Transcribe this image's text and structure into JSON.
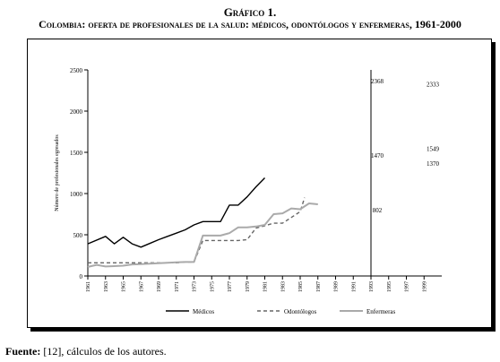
{
  "figure": {
    "number": "Gráfico 1.",
    "title": "Colombia: oferta de profesionales de la salud: médicos, odontólogos y enfermeras, 1961-2000"
  },
  "source": {
    "label": "Fuente:",
    "text": " [12], cálculos de los autores."
  },
  "chart_data": {
    "type": "line",
    "ylabel": "Número de profesionales egresados",
    "ylim": [
      0,
      2500
    ],
    "yticks": [
      0,
      500,
      1000,
      1500,
      2000,
      2500
    ],
    "xlim": [
      1961,
      2001
    ],
    "xticks": [
      "1961",
      "1963",
      "1965",
      "1967",
      "1969",
      "1971",
      "1973",
      "1975",
      "1977",
      "1979",
      "1981",
      "1983",
      "1985",
      "1987",
      "1989",
      "1991",
      "1993",
      "1995",
      "1997",
      "1999"
    ],
    "break_year": 1993,
    "legend_position": "bottom",
    "series": [
      {
        "name": "Médicos",
        "style": "solid",
        "color": "#000000",
        "x": [
          1961,
          1963,
          1964,
          1965,
          1966,
          1967,
          1968,
          1969,
          1970,
          1971,
          1972,
          1973,
          1974,
          1975,
          1976,
          1977,
          1978,
          1979,
          1980,
          1981
        ],
        "y": [
          390,
          480,
          390,
          470,
          390,
          350,
          395,
          440,
          480,
          520,
          560,
          620,
          660,
          660,
          660,
          860,
          860,
          960,
          1080,
          1190
        ]
      },
      {
        "name": "Odontólogos",
        "style": "dashed",
        "color": "#666666",
        "x": [
          1961,
          1963,
          1965,
          1967,
          1969,
          1971,
          1972,
          1973,
          1974,
          1975,
          1976,
          1977,
          1978,
          1979,
          1980,
          1981,
          1982,
          1983,
          1984,
          1985,
          1985.5
        ],
        "y": [
          160,
          160,
          160,
          160,
          160,
          160,
          170,
          170,
          430,
          430,
          430,
          430,
          430,
          440,
          580,
          610,
          640,
          640,
          710,
          780,
          950
        ]
      },
      {
        "name": "Enfermeras",
        "style": "solid",
        "color": "#aaaaaa",
        "x": [
          1961,
          1962,
          1963,
          1964,
          1965,
          1966,
          1967,
          1968,
          1969,
          1970,
          1971,
          1972,
          1973,
          1974,
          1975,
          1976,
          1977,
          1978,
          1979,
          1980,
          1981,
          1982,
          1983,
          1984,
          1985,
          1986,
          1987
        ],
        "y": [
          110,
          135,
          115,
          120,
          125,
          140,
          145,
          150,
          155,
          160,
          165,
          170,
          170,
          490,
          490,
          490,
          520,
          590,
          590,
          600,
          620,
          750,
          760,
          820,
          810,
          880,
          870
        ]
      }
    ],
    "annotations": [
      {
        "text": "2368",
        "column": 1,
        "value": 2368
      },
      {
        "text": "1470",
        "column": 1,
        "value": 1470
      },
      {
        "text": "802",
        "column": 1,
        "value": 802
      },
      {
        "text": "2333",
        "column": 2,
        "value": 2333
      },
      {
        "text": "1549",
        "column": 2,
        "value": 1549
      },
      {
        "text": "1370",
        "column": 2,
        "value": 1370
      }
    ]
  }
}
